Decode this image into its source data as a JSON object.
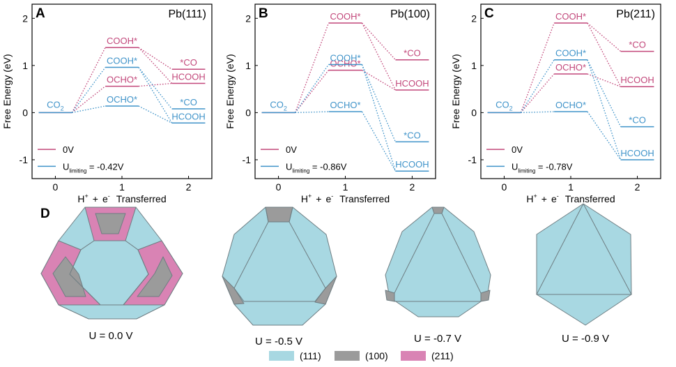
{
  "colors": {
    "red": "#c2477a",
    "blue": "#3f93c9",
    "facet_111": "#a8d8e2",
    "facet_100": "#9b9b9b",
    "facet_211": "#d983b4",
    "edge": "#6e7d82"
  },
  "chart_data": [
    {
      "panel": "A",
      "type": "line",
      "title": "Pb(111)",
      "xlabel": "H+ + e- Transferred",
      "ylabel": "Free Energy (eV)",
      "xticks": [
        "0",
        "1",
        "2"
      ],
      "yticks": [
        "-1",
        "0",
        "1",
        "2"
      ],
      "ylim": [
        -1.4,
        2.3
      ],
      "legend": [
        "0V",
        "U_limiting = -0.42V"
      ],
      "legend_items": [
        {
          "main": "0V",
          "sub": "",
          "rest": ""
        },
        {
          "main": "U",
          "sub": "limiting",
          "rest": " = -0.42V"
        }
      ],
      "ylabel_parts": {
        "pre": "Free Energy (eV)"
      },
      "xlabel_parts": {
        "h": "H",
        "hsup": "+",
        "plus": "+",
        "e": "e",
        "esup": "-",
        "rest": "Transferred"
      },
      "x_start_label": {
        "main": "CO",
        "sub": "2"
      },
      "series": [
        {
          "name": "0V",
          "color": "red",
          "levels": [
            {
              "x": 0,
              "y": 0
            },
            {
              "x": 1,
              "y": 1.38,
              "label": "COOH*"
            },
            {
              "x": 1,
              "y": 0.56,
              "label": "OCHO*"
            },
            {
              "x": 2,
              "y": 0.92,
              "label": "*CO"
            },
            {
              "x": 2,
              "y": 0.62,
              "label": "HCOOH"
            }
          ],
          "links": [
            [
              0,
              1
            ],
            [
              0,
              2
            ],
            [
              1,
              3
            ],
            [
              1,
              4
            ],
            [
              2,
              4
            ]
          ]
        },
        {
          "name": "U_limiting = -0.42V",
          "color": "blue",
          "levels": [
            {
              "x": 0,
              "y": 0,
              "label": "CO2"
            },
            {
              "x": 1,
              "y": 0.96,
              "label": "COOH*"
            },
            {
              "x": 1,
              "y": 0.14,
              "label": "OCHO*"
            },
            {
              "x": 2,
              "y": 0.08,
              "label": "*CO"
            },
            {
              "x": 2,
              "y": -0.22,
              "label": "HCOOH"
            }
          ],
          "links": [
            [
              0,
              1
            ],
            [
              0,
              2
            ],
            [
              1,
              3
            ],
            [
              1,
              4
            ],
            [
              2,
              4
            ]
          ]
        }
      ]
    },
    {
      "panel": "B",
      "type": "line",
      "title": "Pb(100)",
      "xlabel": "H+ + e- Transferred",
      "ylabel": "Free Energy (eV)",
      "xticks": [
        "0",
        "1",
        "2"
      ],
      "yticks": [
        "-1",
        "0",
        "1",
        "2"
      ],
      "ylim": [
        -1.4,
        2.3
      ],
      "legend": [
        "0V",
        "U_limiting = -0.86V"
      ],
      "legend_items": [
        {
          "main": "0V",
          "sub": "",
          "rest": ""
        },
        {
          "main": "U",
          "sub": "limiting",
          "rest": " = -0.86V"
        }
      ],
      "ylabel_parts": {
        "pre": "Free Energy (eV)"
      },
      "xlabel_parts": {
        "h": "H",
        "hsup": "+",
        "plus": "+",
        "e": "e",
        "esup": "-",
        "rest": "Transferred"
      },
      "x_start_label": {
        "main": "CO",
        "sub": "2"
      },
      "series": [
        {
          "name": "0V",
          "color": "red",
          "levels": [
            {
              "x": 0,
              "y": 0
            },
            {
              "x": 1,
              "y": 1.9,
              "label": "COOH*"
            },
            {
              "x": 1,
              "y": 0.9,
              "label": "OCHO*"
            },
            {
              "x": 2,
              "y": 1.12,
              "label": "*CO"
            },
            {
              "x": 2,
              "y": 0.48,
              "label": "HCOOH"
            }
          ],
          "links": [
            [
              0,
              1
            ],
            [
              0,
              2
            ],
            [
              1,
              3
            ],
            [
              1,
              4
            ],
            [
              2,
              4
            ]
          ]
        },
        {
          "name": "U_limiting = -0.86V",
          "color": "blue",
          "levels": [
            {
              "x": 0,
              "y": 0,
              "label": "CO2"
            },
            {
              "x": 1,
              "y": 1.02,
              "label": "COOH*"
            },
            {
              "x": 1,
              "y": 0.02,
              "label": "OCHO*"
            },
            {
              "x": 2,
              "y": -0.62,
              "label": "*CO"
            },
            {
              "x": 2,
              "y": -1.24,
              "label": "HCOOH"
            }
          ],
          "links": [
            [
              0,
              1
            ],
            [
              0,
              2
            ],
            [
              1,
              3
            ],
            [
              1,
              4
            ],
            [
              2,
              4
            ]
          ]
        }
      ]
    },
    {
      "panel": "C",
      "type": "line",
      "title": "Pb(211)",
      "xlabel": "H+ + e- Transferred",
      "ylabel": "Free Energy (eV)",
      "xticks": [
        "0",
        "1",
        "2"
      ],
      "yticks": [
        "-1",
        "0",
        "1",
        "2"
      ],
      "ylim": [
        -1.4,
        2.3
      ],
      "legend": [
        "0V",
        "U_limiting = -0.78V"
      ],
      "legend_items": [
        {
          "main": "0V",
          "sub": "",
          "rest": ""
        },
        {
          "main": "U",
          "sub": "limiting",
          "rest": " = -0.78V"
        }
      ],
      "ylabel_parts": {
        "pre": "Free Energy (eV)"
      },
      "xlabel_parts": {
        "h": "H",
        "hsup": "+",
        "plus": "+",
        "e": "e",
        "esup": "-",
        "rest": "Transferred"
      },
      "x_start_label": {
        "main": "CO",
        "sub": "2"
      },
      "series": [
        {
          "name": "0V",
          "color": "red",
          "levels": [
            {
              "x": 0,
              "y": 0
            },
            {
              "x": 1,
              "y": 1.9,
              "label": "COOH*"
            },
            {
              "x": 1,
              "y": 0.82,
              "label": "OCHO*"
            },
            {
              "x": 2,
              "y": 1.3,
              "label": "*CO"
            },
            {
              "x": 2,
              "y": 0.55,
              "label": "HCOOH"
            }
          ],
          "links": [
            [
              0,
              1
            ],
            [
              0,
              2
            ],
            [
              1,
              3
            ],
            [
              1,
              4
            ],
            [
              2,
              4
            ]
          ]
        },
        {
          "name": "U_limiting = -0.78V",
          "color": "blue",
          "levels": [
            {
              "x": 0,
              "y": 0,
              "label": "CO2"
            },
            {
              "x": 1,
              "y": 1.12,
              "label": "COOH*"
            },
            {
              "x": 1,
              "y": 0.02,
              "label": "OCHO*"
            },
            {
              "x": 2,
              "y": -0.3,
              "label": "*CO"
            },
            {
              "x": 2,
              "y": -1.0,
              "label": "HCOOH"
            }
          ],
          "links": [
            [
              0,
              1
            ],
            [
              0,
              2
            ],
            [
              1,
              3
            ],
            [
              1,
              4
            ],
            [
              2,
              4
            ]
          ]
        }
      ]
    }
  ],
  "panel_d": {
    "label": "D",
    "shapes": [
      {
        "caption": "U = 0.0 V",
        "shape": "truncated-with-211"
      },
      {
        "caption": "U = -0.5 V",
        "shape": "large-100-corners"
      },
      {
        "caption": "U = -0.7 V",
        "shape": "small-100-corners"
      },
      {
        "caption": "U = -0.9 V",
        "shape": "octahedron-view"
      }
    ],
    "legend": [
      {
        "label": "(111)",
        "color": "facet_111"
      },
      {
        "label": "(100)",
        "color": "facet_100"
      },
      {
        "label": "(211)",
        "color": "facet_211"
      }
    ]
  }
}
